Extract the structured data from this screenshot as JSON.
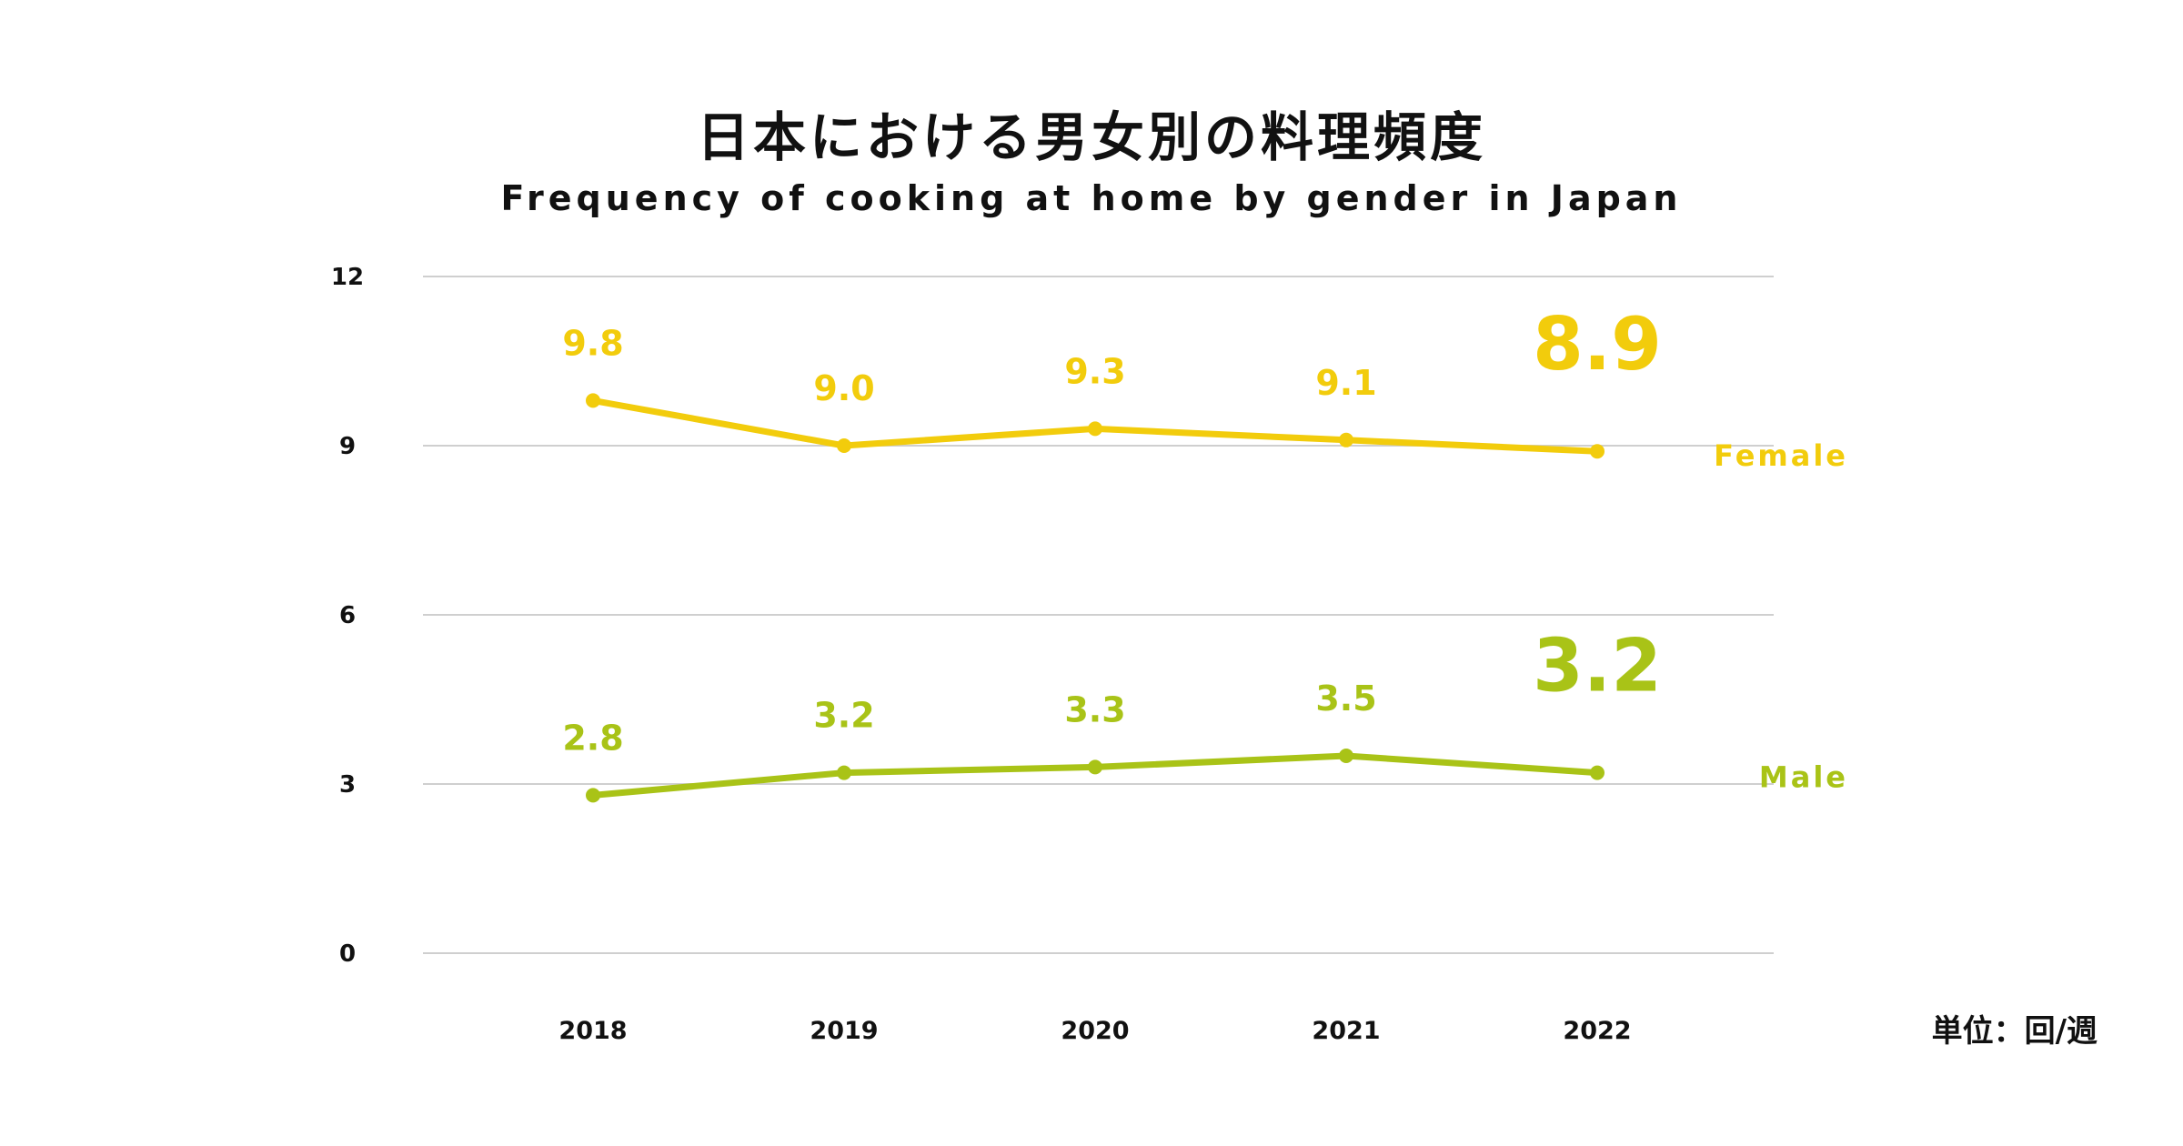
{
  "header": {
    "title": "日本における男女別の料理頻度",
    "subtitle": "Frequency of cooking at home by gender in Japan"
  },
  "unit_label": "単位：回/週",
  "chart_data": {
    "type": "line",
    "categories": [
      "2018",
      "2019",
      "2020",
      "2021",
      "2022"
    ],
    "ylim": [
      0,
      12
    ],
    "yticks": [
      0,
      3,
      6,
      9,
      12
    ],
    "grid": true,
    "series": [
      {
        "name": "Female",
        "values": [
          9.8,
          9.0,
          9.3,
          9.1,
          8.9
        ],
        "labels": [
          "9.8",
          "9.0",
          "9.3",
          "9.1",
          "8.9"
        ],
        "color": "#F2CC0C"
      },
      {
        "name": "Male",
        "values": [
          2.8,
          3.2,
          3.3,
          3.5,
          3.2
        ],
        "labels": [
          "2.8",
          "3.2",
          "3.3",
          "3.5",
          "3.2"
        ],
        "color": "#A9C317"
      }
    ]
  }
}
